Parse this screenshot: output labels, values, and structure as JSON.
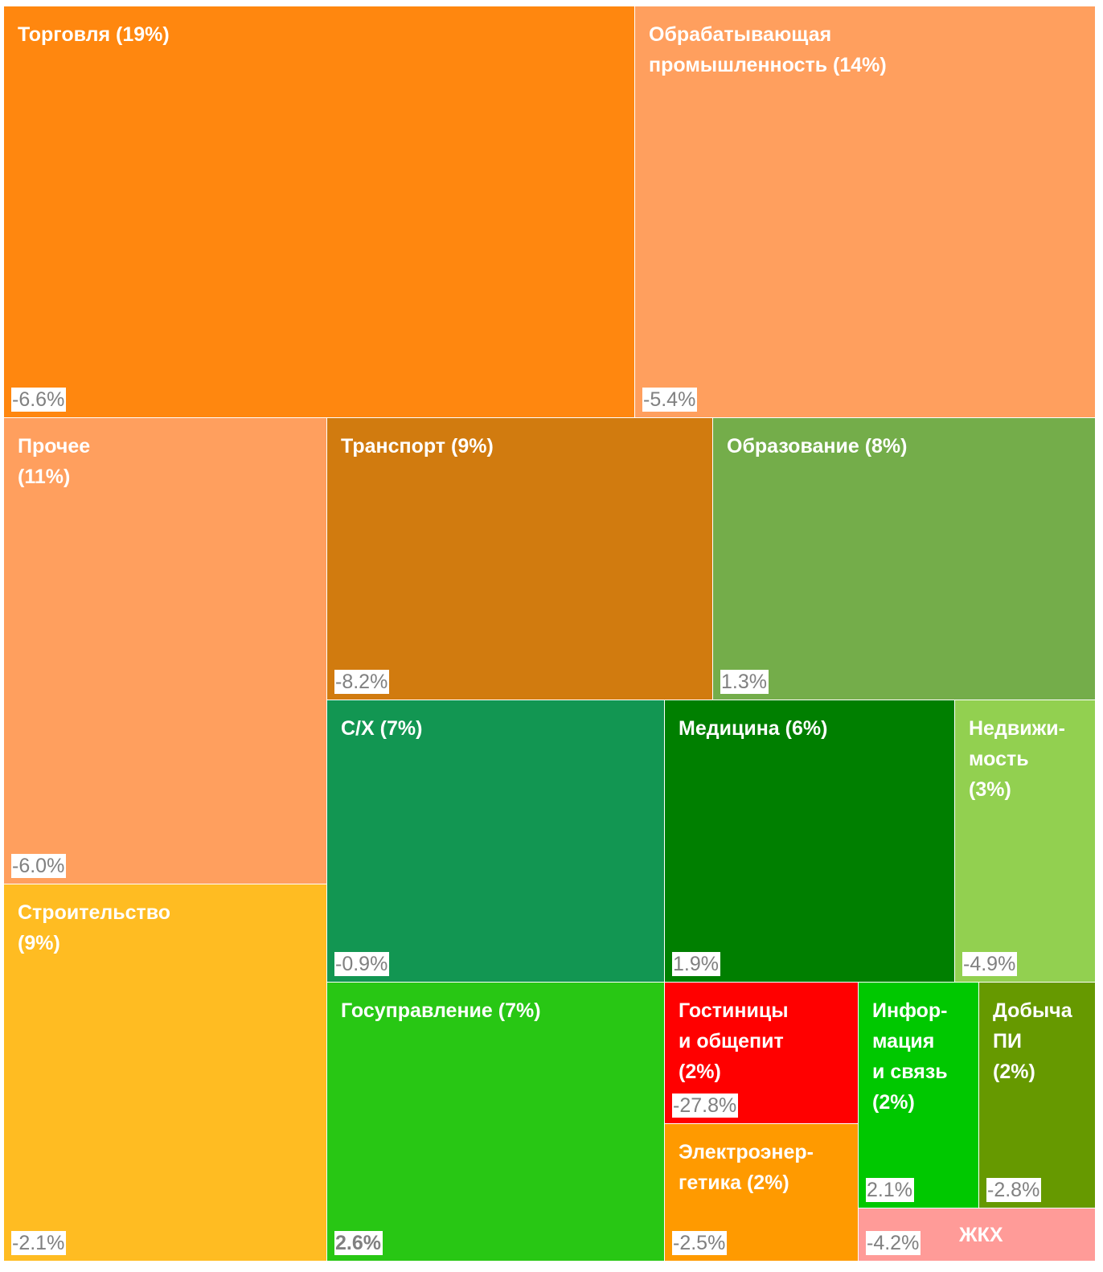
{
  "chart_data": {
    "type": "treemap",
    "categories": [
      "Торговля (19%)",
      "Обрабатывающая\nпромышленность (14%)",
      "Прочее\n(11%)",
      "Транспорт (9%)",
      "Образование (8%)",
      "С/Х (7%)",
      "Медицина (6%)",
      "Недвижи-\nмость\n(3%)",
      "Строительство\n(9%)",
      "Госуправление (7%)",
      "Гостиницы\nи общепит\n(2%)",
      "Электроэнер-\nгетика (2%)",
      "Инфор-\nмация\nи связь\n(2%)",
      "Добыча\nПИ\n(2%)",
      "ЖКХ"
    ],
    "values": [
      -6.6,
      -5.4,
      -6.0,
      -8.2,
      1.3,
      -0.9,
      1.9,
      -4.9,
      -2.1,
      2.6,
      -27.8,
      -2.5,
      2.1,
      -2.8,
      -4.2
    ],
    "value_labels": [
      "-6.6%",
      "-5.4%",
      "-6.0%",
      "-8.2%",
      "1.3%",
      "-0.9%",
      "1.9%",
      "-4.9%",
      "-2.1%",
      "2.6%",
      "-27.8%",
      "-2.5%",
      "2.1%",
      "-2.8%",
      "-4.2%"
    ],
    "colors": [
      "#ff870f",
      "#ff9f5e",
      "#ff9f5e",
      "#d17b0f",
      "#74ad4a",
      "#129652",
      "#007f00",
      "#92d050",
      "#ffbc22",
      "#28c714",
      "#ff0000",
      "#ff9a00",
      "#00c800",
      "#669900",
      "#ff9b98"
    ]
  }
}
